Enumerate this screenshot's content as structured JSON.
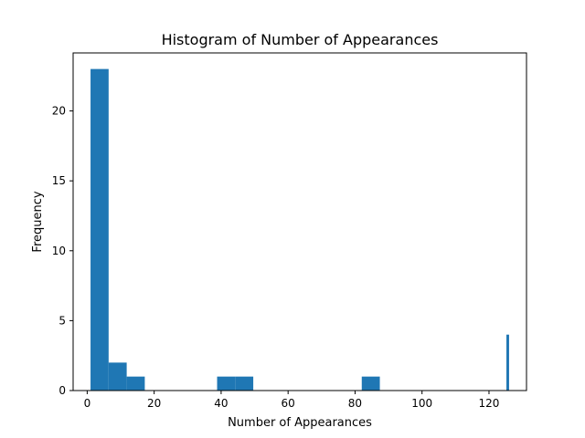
{
  "chart_data": {
    "type": "bar",
    "title": "Histogram of Number of Appearances",
    "xlabel": "Number of Appearances",
    "ylabel": "Frequency",
    "xlim": [
      -4.2,
      131.2
    ],
    "ylim": [
      0,
      24.15
    ],
    "grid": false,
    "legend": "none",
    "bar_color": "#1f77b4",
    "xticks": [
      0,
      20,
      40,
      60,
      80,
      100,
      120
    ],
    "yticks": [
      0,
      5,
      10,
      15,
      20
    ],
    "bins": [
      {
        "x0": 1.0,
        "x1": 6.4,
        "count": 23
      },
      {
        "x0": 6.4,
        "x1": 11.8,
        "count": 2
      },
      {
        "x0": 11.8,
        "x1": 17.2,
        "count": 1
      },
      {
        "x0": 17.2,
        "x1": 22.6,
        "count": 0
      },
      {
        "x0": 22.6,
        "x1": 28.0,
        "count": 0
      },
      {
        "x0": 28.0,
        "x1": 33.4,
        "count": 0
      },
      {
        "x0": 33.4,
        "x1": 38.8,
        "count": 0
      },
      {
        "x0": 38.8,
        "x1": 44.2,
        "count": 1
      },
      {
        "x0": 44.2,
        "x1": 49.6,
        "count": 1
      },
      {
        "x0": 49.6,
        "x1": 55.0,
        "count": 0
      },
      {
        "x0": 55.0,
        "x1": 60.4,
        "count": 0
      },
      {
        "x0": 60.4,
        "x1": 65.8,
        "count": 0
      },
      {
        "x0": 65.8,
        "x1": 71.2,
        "count": 0
      },
      {
        "x0": 71.2,
        "x1": 76.6,
        "count": 0
      },
      {
        "x0": 76.6,
        "x1": 82.0,
        "count": 0
      },
      {
        "x0": 82.0,
        "x1": 87.4,
        "count": 1
      },
      {
        "x0": 87.4,
        "x1": 92.8,
        "count": 0
      },
      {
        "x0": 92.8,
        "x1": 98.2,
        "count": 0
      },
      {
        "x0": 98.2,
        "x1": 103.6,
        "count": 0
      },
      {
        "x0": 103.6,
        "x1": 109.0,
        "count": 0
      },
      {
        "x0": 109.0,
        "x1": 114.4,
        "count": 0
      },
      {
        "x0": 114.4,
        "x1": 119.8,
        "count": 0
      },
      {
        "x0": 119.8,
        "x1": 125.2,
        "count": 0
      },
      {
        "x0": 125.2,
        "x1": 126.0,
        "count": 4
      }
    ]
  }
}
